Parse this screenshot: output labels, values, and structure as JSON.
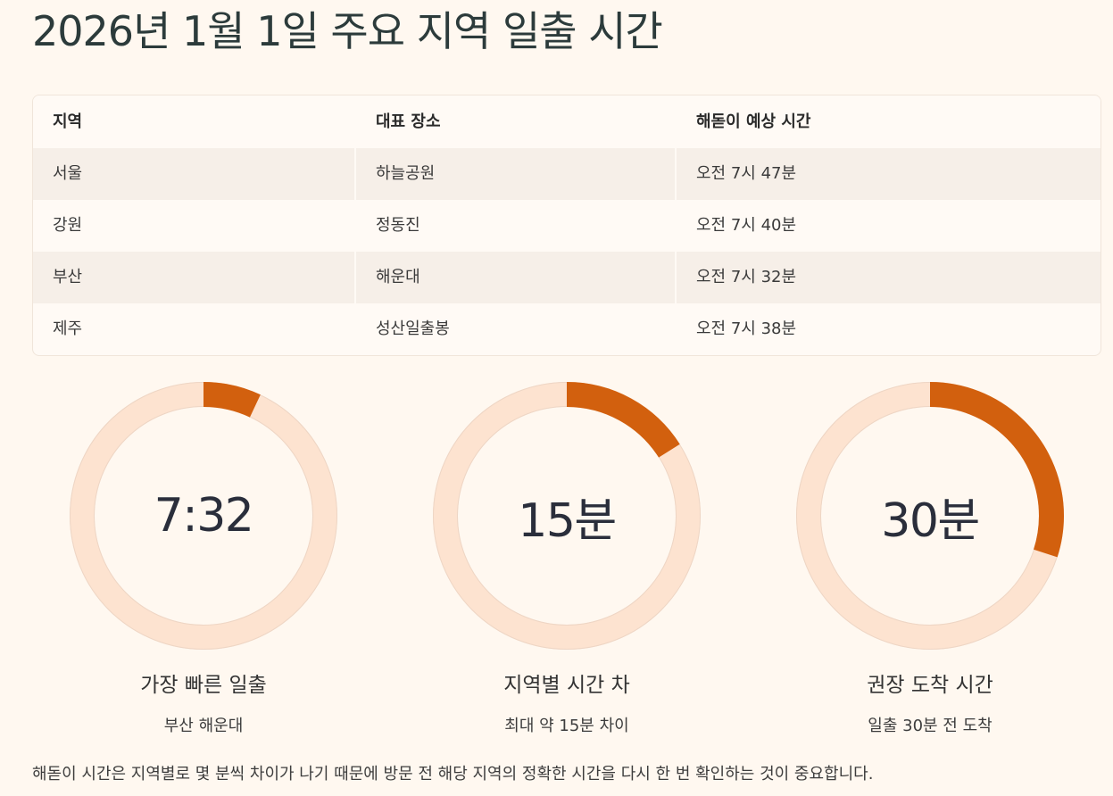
{
  "title": "2026년 1월 1일 주요 지역 일출 시간",
  "colors": {
    "background": "#fff8f0",
    "title_text": "#2c3b3b",
    "accent": "#d2600e",
    "track": "#fde3d0",
    "row_shade": "#f6efe8"
  },
  "chart_data": [
    {
      "type": "table",
      "columns": [
        "지역",
        "대표 장소",
        "해돋이 예상 시간"
      ],
      "rows": [
        [
          "서울",
          "하늘공원",
          "오전 7시 47분"
        ],
        [
          "강원",
          "정동진",
          "오전 7시 40분"
        ],
        [
          "부산",
          "해운대",
          "오전 7시 32분"
        ],
        [
          "제주",
          "성산일출봉",
          "오전 7시 38분"
        ]
      ]
    },
    {
      "type": "pie",
      "center_text": "7:32",
      "title": "가장 빠른 일출",
      "subtitle": "부산 해운대",
      "fill_fraction": 0.07
    },
    {
      "type": "pie",
      "center_text": "15분",
      "title": "지역별 시간 차",
      "subtitle": "최대 약 15분 차이",
      "fill_fraction": 0.16
    },
    {
      "type": "pie",
      "center_text": "30분",
      "title": "권장 도착 시간",
      "subtitle": "일출 30분 전 도착",
      "fill_fraction": 0.3
    }
  ],
  "footnote": "해돋이 시간은 지역별로 몇 분씩 차이가 나기 때문에 방문 전 해당 지역의 정확한 시간을 다시 한 번 확인하는 것이 중요합니다."
}
